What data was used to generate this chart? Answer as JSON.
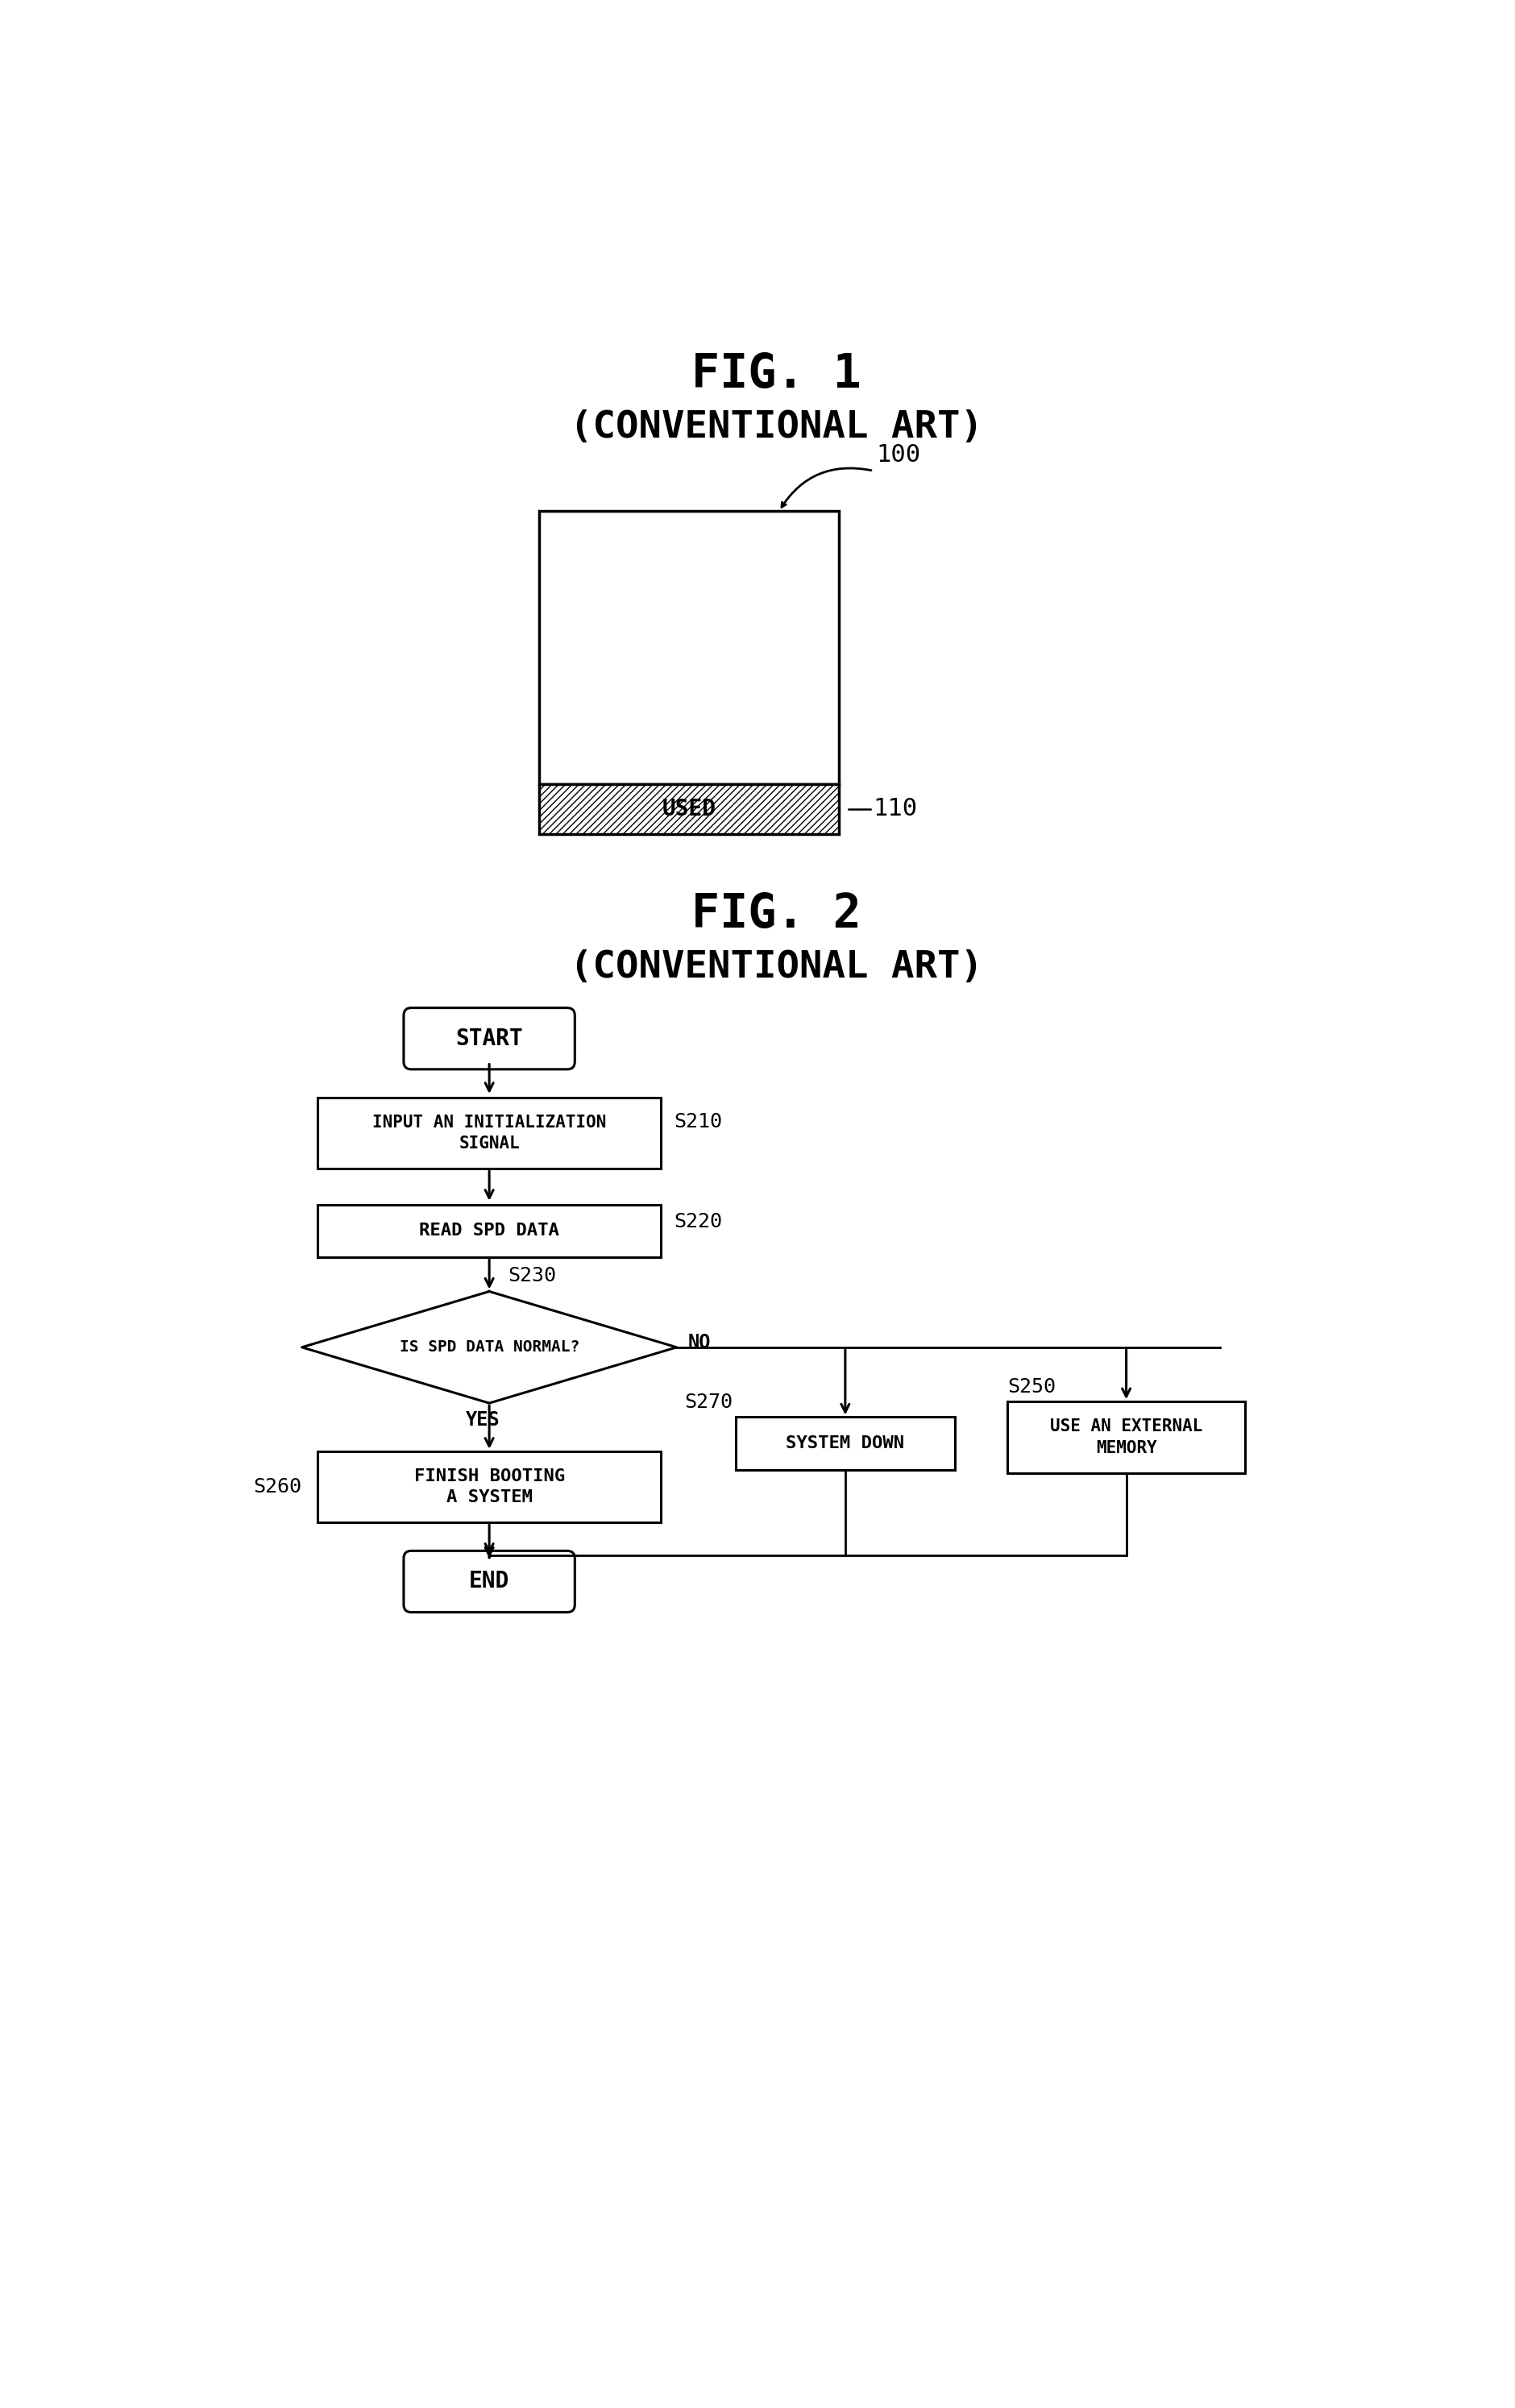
{
  "fig1_title": "FIG. 1",
  "fig1_subtitle": "(CONVENTIONAL ART)",
  "fig2_title": "FIG. 2",
  "fig2_subtitle": "(CONVENTIONAL ART)",
  "label_100": "100",
  "label_110": "110",
  "label_used": "USED",
  "label_start": "START",
  "label_end": "END",
  "label_s210": "S210",
  "label_s220": "S220",
  "label_s230": "S230",
  "label_s250": "S250",
  "label_s260": "S260",
  "label_s270": "S270",
  "box_s210_line1": "INPUT AN INITIALIZATION",
  "box_s210_line2": "SIGNAL",
  "box_s220": "READ SPD DATA",
  "diamond_s230": "IS SPD DATA NORMAL?",
  "box_s250_line1": "USE AN EXTERNAL",
  "box_s250_line2": "MEMORY",
  "box_s260_line1": "FINISH BOOTING",
  "box_s260_line2": "A SYSTEM",
  "box_s270": "SYSTEM DOWN",
  "arrow_yes": "YES",
  "arrow_no": "NO",
  "bg_color": "#ffffff",
  "line_color": "#000000"
}
